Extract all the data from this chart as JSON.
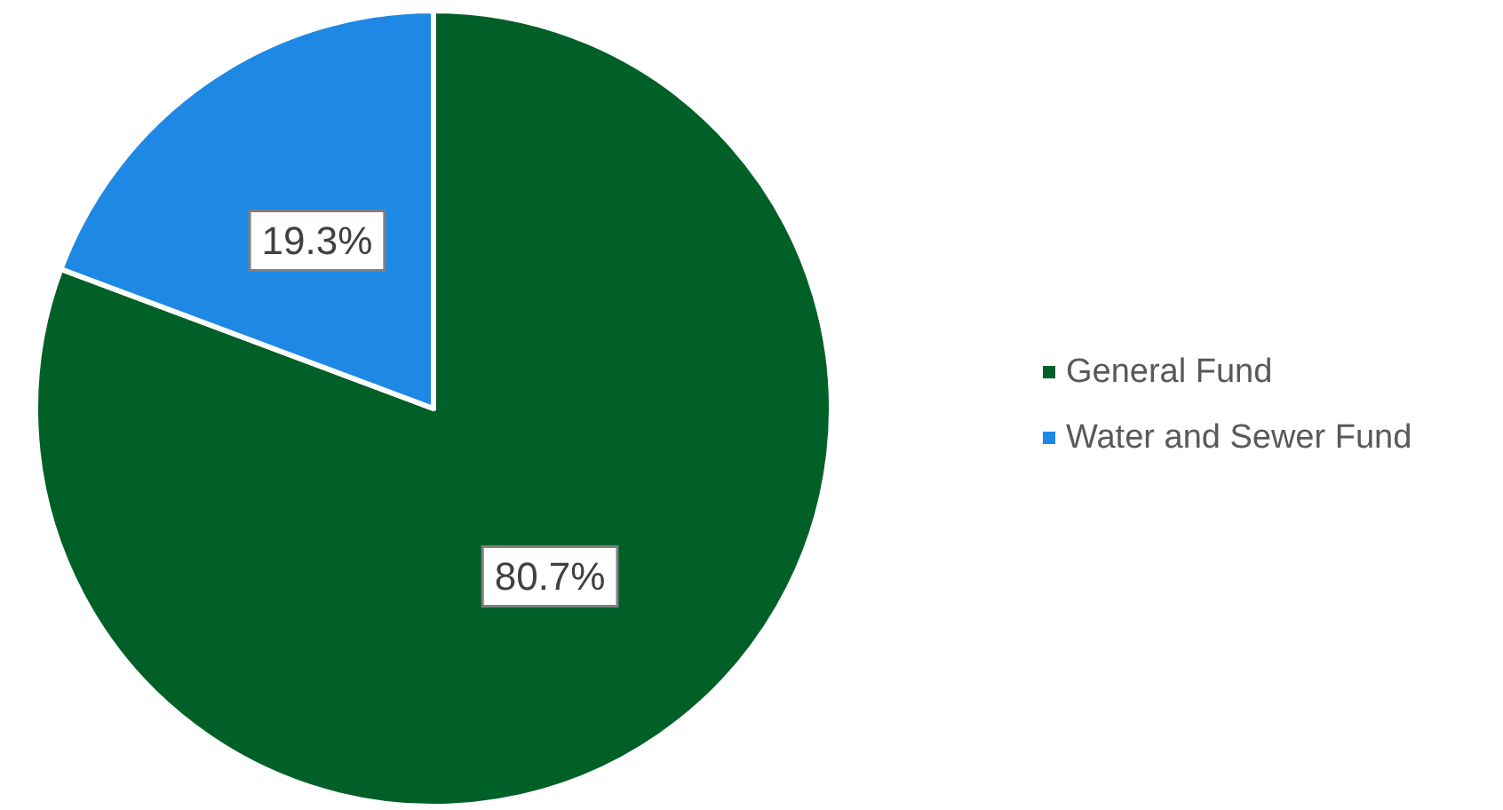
{
  "chart_data": {
    "type": "pie",
    "categories": [
      "General Fund",
      "Water and Sewer Fund"
    ],
    "values": [
      80.7,
      19.3
    ],
    "value_labels": [
      "80.7%",
      "19.3%"
    ],
    "colors": [
      "#006027",
      "#1e88e5"
    ],
    "legend": "right"
  }
}
